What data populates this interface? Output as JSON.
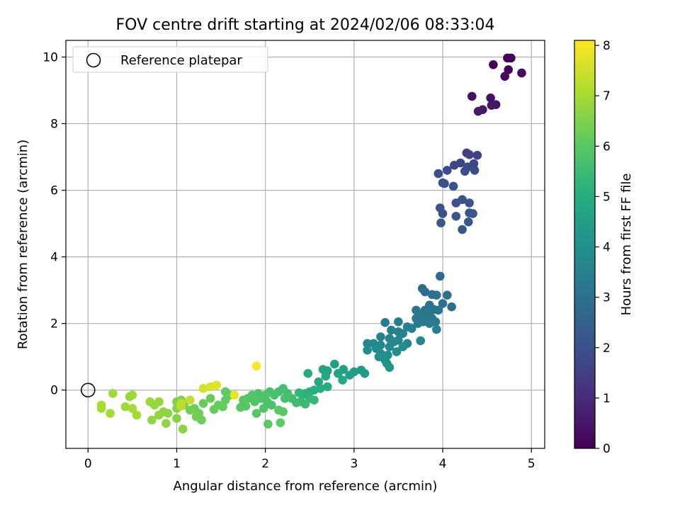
{
  "chart_data": {
    "type": "scatter",
    "title": "FOV centre drift starting at 2024/02/06 08:33:04",
    "xlabel": "Angular distance from reference (arcmin)",
    "ylabel": "Rotation from reference (arcmin)",
    "xlim": [
      -0.25,
      5.15
    ],
    "ylim": [
      -1.75,
      10.5
    ],
    "xticks": [
      "0",
      "1",
      "2",
      "3",
      "4",
      "5"
    ],
    "yticks": [
      "0",
      "2",
      "4",
      "6",
      "8",
      "10"
    ],
    "grid": true,
    "legend": {
      "placement": "top-left",
      "entries": [
        "Reference platepar"
      ]
    },
    "reference_point": {
      "x": 0.0,
      "y": 0.0
    },
    "colorbar": {
      "label": "Hours from first FF file",
      "range": [
        0,
        8.1
      ],
      "ticks": [
        "0",
        "1",
        "2",
        "3",
        "4",
        "5",
        "6",
        "7",
        "8"
      ],
      "colormap": "viridis"
    },
    "points": [
      {
        "x": 4.73,
        "y": 9.97,
        "c": 0.05
      },
      {
        "x": 4.77,
        "y": 9.97,
        "c": 0.07
      },
      {
        "x": 4.57,
        "y": 9.77,
        "c": 0.12
      },
      {
        "x": 4.74,
        "y": 9.62,
        "c": 0.15
      },
      {
        "x": 4.89,
        "y": 9.52,
        "c": 0.18
      },
      {
        "x": 4.7,
        "y": 9.42,
        "c": 0.22
      },
      {
        "x": 4.33,
        "y": 8.82,
        "c": 0.35
      },
      {
        "x": 4.54,
        "y": 8.77,
        "c": 0.4
      },
      {
        "x": 4.6,
        "y": 8.57,
        "c": 0.45
      },
      {
        "x": 4.55,
        "y": 8.55,
        "c": 0.5
      },
      {
        "x": 4.45,
        "y": 8.42,
        "c": 0.55
      },
      {
        "x": 4.4,
        "y": 8.37,
        "c": 0.6
      },
      {
        "x": 4.27,
        "y": 7.12,
        "c": 1.5
      },
      {
        "x": 4.3,
        "y": 7.07,
        "c": 1.55
      },
      {
        "x": 4.39,
        "y": 7.05,
        "c": 1.6
      },
      {
        "x": 4.2,
        "y": 6.82,
        "c": 1.65
      },
      {
        "x": 4.13,
        "y": 6.75,
        "c": 1.7
      },
      {
        "x": 4.35,
        "y": 6.8,
        "c": 1.75
      },
      {
        "x": 4.28,
        "y": 6.7,
        "c": 1.8
      },
      {
        "x": 4.05,
        "y": 6.6,
        "c": 1.85
      },
      {
        "x": 4.25,
        "y": 6.57,
        "c": 1.9
      },
      {
        "x": 4.36,
        "y": 6.6,
        "c": 1.92
      },
      {
        "x": 3.95,
        "y": 6.5,
        "c": 1.95
      },
      {
        "x": 4.0,
        "y": 6.22,
        "c": 1.97
      },
      {
        "x": 4.02,
        "y": 6.2,
        "c": 1.98
      },
      {
        "x": 4.12,
        "y": 6.12,
        "c": 2.0
      },
      {
        "x": 4.22,
        "y": 5.72,
        "c": 2.02
      },
      {
        "x": 4.15,
        "y": 5.62,
        "c": 2.04
      },
      {
        "x": 4.3,
        "y": 5.62,
        "c": 2.06
      },
      {
        "x": 3.97,
        "y": 5.47,
        "c": 2.08
      },
      {
        "x": 4.0,
        "y": 5.3,
        "c": 2.1
      },
      {
        "x": 4.3,
        "y": 5.32,
        "c": 2.12
      },
      {
        "x": 4.34,
        "y": 5.3,
        "c": 2.14
      },
      {
        "x": 4.15,
        "y": 5.22,
        "c": 2.16
      },
      {
        "x": 4.29,
        "y": 5.05,
        "c": 2.18
      },
      {
        "x": 3.98,
        "y": 5.02,
        "c": 2.2
      },
      {
        "x": 4.22,
        "y": 4.82,
        "c": 2.22
      },
      {
        "x": 3.97,
        "y": 3.42,
        "c": 2.75
      },
      {
        "x": 3.77,
        "y": 3.05,
        "c": 2.8
      },
      {
        "x": 3.8,
        "y": 2.95,
        "c": 2.85
      },
      {
        "x": 3.88,
        "y": 2.87,
        "c": 2.9
      },
      {
        "x": 3.93,
        "y": 2.85,
        "c": 2.95
      },
      {
        "x": 4.05,
        "y": 2.85,
        "c": 2.98
      },
      {
        "x": 4.0,
        "y": 2.6,
        "c": 3.0
      },
      {
        "x": 4.1,
        "y": 2.5,
        "c": 3.02
      },
      {
        "x": 3.85,
        "y": 2.55,
        "c": 3.05
      },
      {
        "x": 3.8,
        "y": 2.4,
        "c": 3.08
      },
      {
        "x": 3.9,
        "y": 2.42,
        "c": 3.1
      },
      {
        "x": 3.7,
        "y": 2.4,
        "c": 3.12
      },
      {
        "x": 3.95,
        "y": 2.4,
        "c": 3.15
      },
      {
        "x": 3.85,
        "y": 2.3,
        "c": 3.18
      },
      {
        "x": 3.75,
        "y": 2.25,
        "c": 3.2
      },
      {
        "x": 3.82,
        "y": 2.2,
        "c": 3.22
      },
      {
        "x": 3.7,
        "y": 2.15,
        "c": 3.25
      },
      {
        "x": 3.88,
        "y": 2.15,
        "c": 3.28
      },
      {
        "x": 3.78,
        "y": 2.05,
        "c": 3.3
      },
      {
        "x": 3.72,
        "y": 2.0,
        "c": 3.33
      },
      {
        "x": 3.85,
        "y": 2.0,
        "c": 3.35
      },
      {
        "x": 3.92,
        "y": 2.05,
        "c": 3.38
      },
      {
        "x": 3.5,
        "y": 2.05,
        "c": 3.4
      },
      {
        "x": 3.35,
        "y": 2.03,
        "c": 3.43
      },
      {
        "x": 3.6,
        "y": 1.9,
        "c": 3.45
      },
      {
        "x": 3.65,
        "y": 1.85,
        "c": 3.48
      },
      {
        "x": 3.93,
        "y": 1.82,
        "c": 3.5
      },
      {
        "x": 3.42,
        "y": 1.8,
        "c": 3.53
      },
      {
        "x": 3.5,
        "y": 1.75,
        "c": 3.55
      },
      {
        "x": 3.55,
        "y": 1.7,
        "c": 3.58
      },
      {
        "x": 3.3,
        "y": 1.6,
        "c": 3.6
      },
      {
        "x": 3.4,
        "y": 1.55,
        "c": 3.63
      },
      {
        "x": 3.5,
        "y": 1.5,
        "c": 3.65
      },
      {
        "x": 3.75,
        "y": 1.48,
        "c": 3.68
      },
      {
        "x": 3.6,
        "y": 1.4,
        "c": 3.7
      },
      {
        "x": 3.45,
        "y": 1.45,
        "c": 3.73
      },
      {
        "x": 3.15,
        "y": 1.4,
        "c": 3.75
      },
      {
        "x": 3.22,
        "y": 1.4,
        "c": 3.78
      },
      {
        "x": 3.3,
        "y": 1.35,
        "c": 3.8
      },
      {
        "x": 3.4,
        "y": 1.3,
        "c": 3.83
      },
      {
        "x": 3.55,
        "y": 1.3,
        "c": 3.85
      },
      {
        "x": 3.25,
        "y": 1.25,
        "c": 3.88
      },
      {
        "x": 3.15,
        "y": 1.2,
        "c": 3.9
      },
      {
        "x": 3.48,
        "y": 1.15,
        "c": 3.93
      },
      {
        "x": 3.3,
        "y": 1.1,
        "c": 3.95
      },
      {
        "x": 3.38,
        "y": 1.05,
        "c": 3.98
      },
      {
        "x": 3.28,
        "y": 1.0,
        "c": 4.0
      },
      {
        "x": 3.35,
        "y": 0.9,
        "c": 4.05
      },
      {
        "x": 3.37,
        "y": 0.8,
        "c": 4.1
      },
      {
        "x": 3.4,
        "y": 0.68,
        "c": 4.15
      },
      {
        "x": 3.08,
        "y": 0.6,
        "c": 4.3
      },
      {
        "x": 3.12,
        "y": 0.5,
        "c": 4.35
      },
      {
        "x": 3.0,
        "y": 0.55,
        "c": 4.4
      },
      {
        "x": 2.95,
        "y": 0.45,
        "c": 4.45
      },
      {
        "x": 2.88,
        "y": 0.62,
        "c": 4.5
      },
      {
        "x": 2.78,
        "y": 0.78,
        "c": 4.55
      },
      {
        "x": 2.82,
        "y": 0.5,
        "c": 4.6
      },
      {
        "x": 2.7,
        "y": 0.58,
        "c": 4.65
      },
      {
        "x": 2.65,
        "y": 0.62,
        "c": 4.7
      },
      {
        "x": 2.68,
        "y": 0.42,
        "c": 4.75
      },
      {
        "x": 2.6,
        "y": 0.25,
        "c": 4.8
      },
      {
        "x": 2.87,
        "y": 0.3,
        "c": 4.85
      },
      {
        "x": 2.48,
        "y": 0.5,
        "c": 4.9
      },
      {
        "x": 2.7,
        "y": 0.1,
        "c": 4.95
      },
      {
        "x": 2.62,
        "y": 0.05,
        "c": 5.0
      },
      {
        "x": 2.55,
        "y": 0.0,
        "c": 5.05
      },
      {
        "x": 2.5,
        "y": -0.05,
        "c": 5.1
      },
      {
        "x": 2.45,
        "y": -0.1,
        "c": 5.15
      },
      {
        "x": 2.42,
        "y": -0.15,
        "c": 5.2
      },
      {
        "x": 2.38,
        "y": -0.08,
        "c": 5.25
      },
      {
        "x": 2.5,
        "y": -0.25,
        "c": 5.3
      },
      {
        "x": 2.55,
        "y": -0.3,
        "c": 5.35
      },
      {
        "x": 2.4,
        "y": -0.35,
        "c": 5.4
      },
      {
        "x": 2.45,
        "y": -0.42,
        "c": 5.45
      },
      {
        "x": 2.35,
        "y": -0.38,
        "c": 5.5
      },
      {
        "x": 2.3,
        "y": -0.25,
        "c": 5.55
      },
      {
        "x": 2.25,
        "y": -0.1,
        "c": 5.6
      },
      {
        "x": 2.2,
        "y": 0.05,
        "c": 5.62
      },
      {
        "x": 2.15,
        "y": -0.05,
        "c": 5.65
      },
      {
        "x": 2.22,
        "y": -0.25,
        "c": 5.68
      },
      {
        "x": 2.1,
        "y": -0.15,
        "c": 5.7
      },
      {
        "x": 2.05,
        "y": -0.05,
        "c": 5.72
      },
      {
        "x": 2.0,
        "y": -0.15,
        "c": 5.74
      },
      {
        "x": 2.02,
        "y": -0.35,
        "c": 5.76
      },
      {
        "x": 2.07,
        "y": -0.45,
        "c": 5.78
      },
      {
        "x": 1.95,
        "y": -0.25,
        "c": 5.8
      },
      {
        "x": 1.92,
        "y": -0.1,
        "c": 5.82
      },
      {
        "x": 1.88,
        "y": -0.35,
        "c": 5.84
      },
      {
        "x": 1.98,
        "y": -0.55,
        "c": 5.86
      },
      {
        "x": 1.85,
        "y": -0.15,
        "c": 5.88
      },
      {
        "x": 1.8,
        "y": -0.25,
        "c": 5.9
      },
      {
        "x": 1.75,
        "y": -0.3,
        "c": 5.92
      },
      {
        "x": 1.78,
        "y": -0.48,
        "c": 5.94
      },
      {
        "x": 1.72,
        "y": -0.52,
        "c": 5.96
      },
      {
        "x": 1.9,
        "y": -0.7,
        "c": 5.98
      },
      {
        "x": 2.15,
        "y": -0.6,
        "c": 6.0
      },
      {
        "x": 2.2,
        "y": -0.65,
        "c": 6.02
      },
      {
        "x": 2.03,
        "y": -1.02,
        "c": 6.04
      },
      {
        "x": 2.17,
        "y": -0.98,
        "c": 6.06
      },
      {
        "x": 1.6,
        "y": -0.15,
        "c": 6.08
      },
      {
        "x": 1.55,
        "y": -0.05,
        "c": 6.1
      },
      {
        "x": 1.55,
        "y": -0.3,
        "c": 6.12
      },
      {
        "x": 1.52,
        "y": -0.5,
        "c": 6.14
      },
      {
        "x": 1.47,
        "y": -0.45,
        "c": 6.16
      },
      {
        "x": 1.42,
        "y": -0.58,
        "c": 6.18
      },
      {
        "x": 1.38,
        "y": -0.25,
        "c": 6.2
      },
      {
        "x": 1.3,
        "y": -0.4,
        "c": 6.22
      },
      {
        "x": 1.2,
        "y": -0.55,
        "c": 6.25
      },
      {
        "x": 1.25,
        "y": -0.7,
        "c": 6.28
      },
      {
        "x": 1.28,
        "y": -0.9,
        "c": 6.3
      },
      {
        "x": 1.22,
        "y": -0.8,
        "c": 6.33
      },
      {
        "x": 1.15,
        "y": -0.6,
        "c": 6.36
      },
      {
        "x": 1.08,
        "y": -0.45,
        "c": 6.4
      },
      {
        "x": 1.0,
        "y": -0.35,
        "c": 6.45
      },
      {
        "x": 1.05,
        "y": -0.3,
        "c": 6.5
      },
      {
        "x": 1.0,
        "y": -0.55,
        "c": 6.55
      },
      {
        "x": 1.0,
        "y": -0.85,
        "c": 6.6
      },
      {
        "x": 1.07,
        "y": -1.17,
        "c": 6.62
      },
      {
        "x": 0.9,
        "y": -0.7,
        "c": 6.65
      },
      {
        "x": 0.85,
        "y": -0.65,
        "c": 6.68
      },
      {
        "x": 0.8,
        "y": -0.75,
        "c": 6.7
      },
      {
        "x": 0.88,
        "y": -1.0,
        "c": 6.72
      },
      {
        "x": 0.72,
        "y": -0.9,
        "c": 6.75
      },
      {
        "x": 0.8,
        "y": -0.35,
        "c": 6.78
      },
      {
        "x": 0.75,
        "y": -0.45,
        "c": 6.8
      },
      {
        "x": 0.7,
        "y": -0.35,
        "c": 6.82
      },
      {
        "x": 0.5,
        "y": -0.15,
        "c": 6.85
      },
      {
        "x": 0.47,
        "y": -0.2,
        "c": 6.88
      },
      {
        "x": 0.28,
        "y": -0.1,
        "c": 6.9
      },
      {
        "x": 0.42,
        "y": -0.5,
        "c": 6.93
      },
      {
        "x": 0.5,
        "y": -0.55,
        "c": 6.96
      },
      {
        "x": 0.55,
        "y": -0.75,
        "c": 6.98
      },
      {
        "x": 0.25,
        "y": -0.7,
        "c": 7.0
      },
      {
        "x": 0.15,
        "y": -0.45,
        "c": 7.02
      },
      {
        "x": 0.15,
        "y": -0.55,
        "c": 7.05
      },
      {
        "x": 1.05,
        "y": -0.4,
        "c": 7.25
      },
      {
        "x": 1.05,
        "y": -0.48,
        "c": 7.3
      },
      {
        "x": 1.15,
        "y": -0.3,
        "c": 7.35
      },
      {
        "x": 1.3,
        "y": 0.05,
        "c": 7.55
      },
      {
        "x": 1.38,
        "y": 0.1,
        "c": 7.65
      },
      {
        "x": 1.45,
        "y": 0.15,
        "c": 7.75
      },
      {
        "x": 1.65,
        "y": -0.15,
        "c": 7.85
      },
      {
        "x": 1.9,
        "y": 0.72,
        "c": 8.0
      }
    ]
  }
}
